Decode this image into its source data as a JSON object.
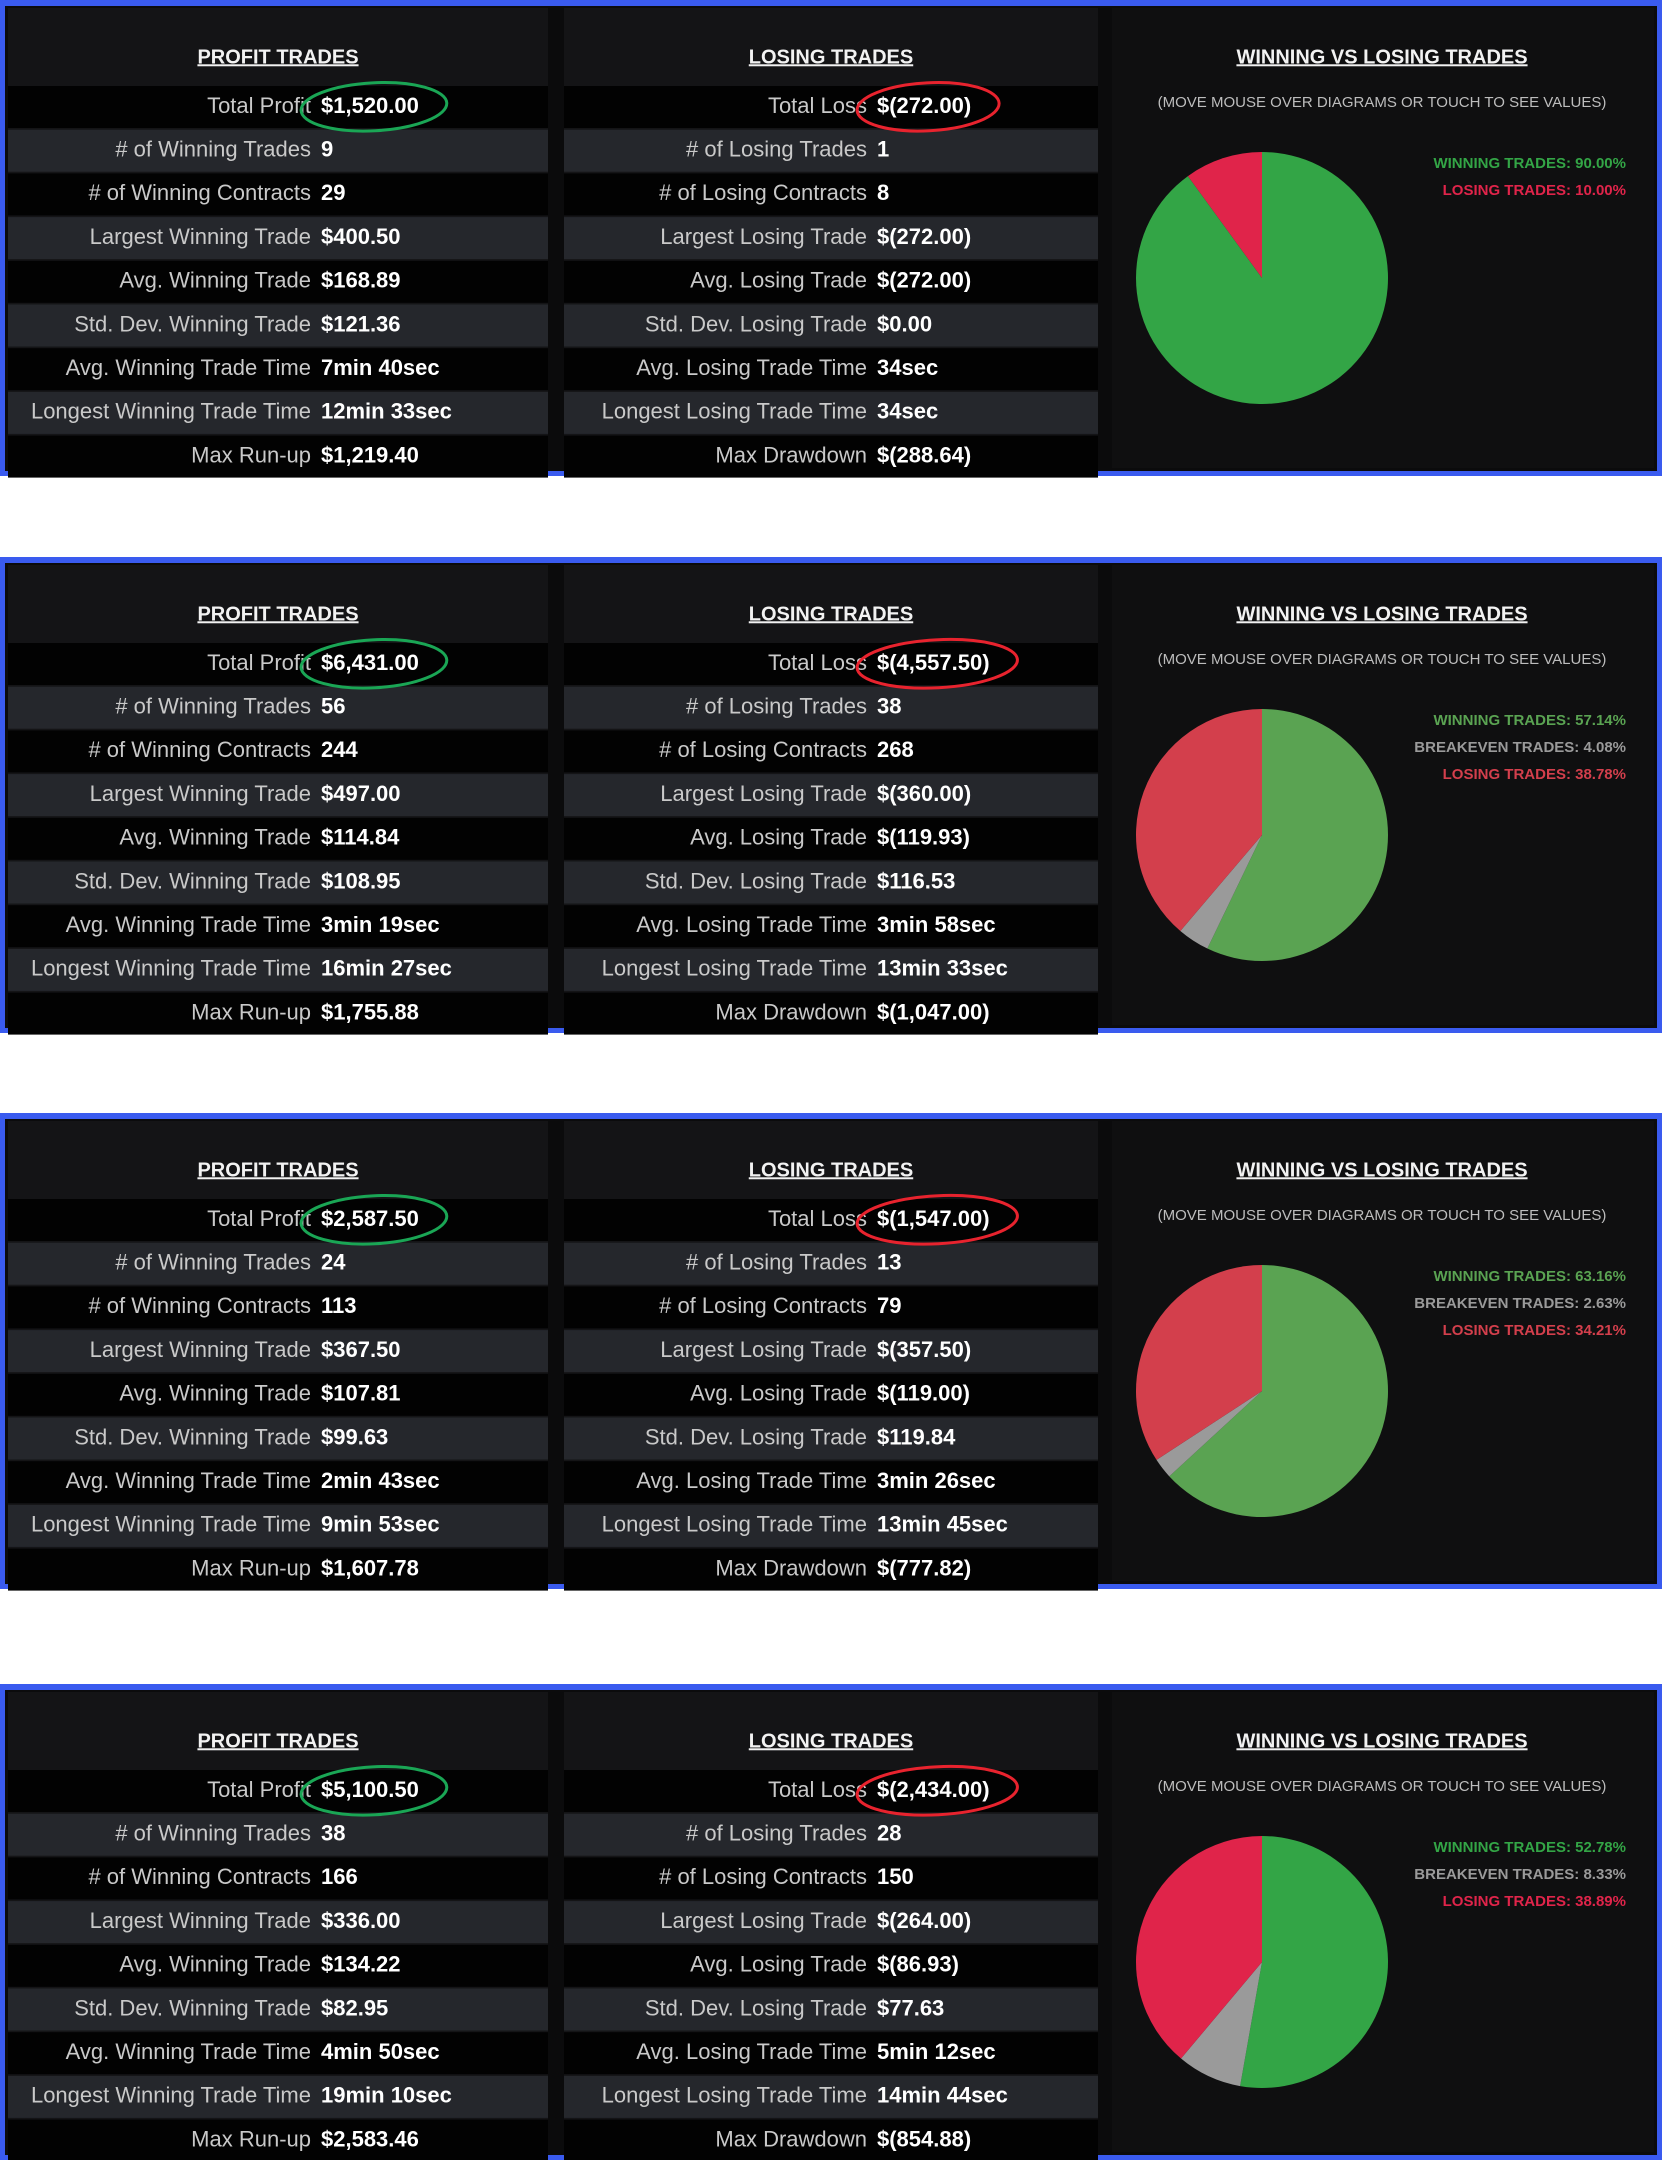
{
  "panels": [
    {
      "profit": {
        "title": "PROFIT TRADES",
        "rows": [
          {
            "label": "Total Profit",
            "value": "$1,520.00"
          },
          {
            "label": "# of Winning Trades",
            "value": "9"
          },
          {
            "label": "# of Winning Contracts",
            "value": "29"
          },
          {
            "label": "Largest Winning Trade",
            "value": "$400.50"
          },
          {
            "label": "Avg. Winning Trade",
            "value": "$168.89"
          },
          {
            "label": "Std. Dev. Winning Trade",
            "value": "$121.36"
          },
          {
            "label": "Avg. Winning Trade Time",
            "value": "7min 40sec"
          },
          {
            "label": "Longest Winning Trade Time",
            "value": "12min 33sec"
          },
          {
            "label": "Max Run-up",
            "value": "$1,219.40"
          }
        ]
      },
      "loss": {
        "title": "LOSING TRADES",
        "rows": [
          {
            "label": "Total Loss",
            "value": "$(272.00)"
          },
          {
            "label": "# of Losing Trades",
            "value": "1"
          },
          {
            "label": "# of Losing Contracts",
            "value": "8"
          },
          {
            "label": "Largest Losing Trade",
            "value": "$(272.00)"
          },
          {
            "label": "Avg. Losing Trade",
            "value": "$(272.00)"
          },
          {
            "label": "Std. Dev. Losing Trade",
            "value": "$0.00"
          },
          {
            "label": "Avg. Losing Trade Time",
            "value": "34sec"
          },
          {
            "label": "Longest Losing Trade Time",
            "value": "34sec"
          },
          {
            "label": "Max Drawdown",
            "value": "$(288.64)"
          }
        ]
      },
      "pie": {
        "title": "WINNING VS LOSING TRADES",
        "subtitle": "(MOVE MOUSE OVER DIAGRAMS OR TOUCH TO SEE VALUES)",
        "slices": [
          {
            "label": "WINNING TRADES: 90.00%",
            "value": 90,
            "color": "#33a546"
          },
          {
            "label": "LOSING TRADES: 10.00%",
            "value": 10,
            "color": "#e0244a"
          }
        ]
      }
    },
    {
      "profit": {
        "title": "PROFIT TRADES",
        "rows": [
          {
            "label": "Total Profit",
            "value": "$6,431.00"
          },
          {
            "label": "# of Winning Trades",
            "value": "56"
          },
          {
            "label": "# of Winning Contracts",
            "value": "244"
          },
          {
            "label": "Largest Winning Trade",
            "value": "$497.00"
          },
          {
            "label": "Avg. Winning Trade",
            "value": "$114.84"
          },
          {
            "label": "Std. Dev. Winning Trade",
            "value": "$108.95"
          },
          {
            "label": "Avg. Winning Trade Time",
            "value": "3min 19sec"
          },
          {
            "label": "Longest Winning Trade Time",
            "value": "16min 27sec"
          },
          {
            "label": "Max Run-up",
            "value": "$1,755.88"
          }
        ]
      },
      "loss": {
        "title": "LOSING TRADES",
        "rows": [
          {
            "label": "Total Loss",
            "value": "$(4,557.50)"
          },
          {
            "label": "# of Losing Trades",
            "value": "38"
          },
          {
            "label": "# of Losing Contracts",
            "value": "268"
          },
          {
            "label": "Largest Losing Trade",
            "value": "$(360.00)"
          },
          {
            "label": "Avg. Losing Trade",
            "value": "$(119.93)"
          },
          {
            "label": "Std. Dev. Losing Trade",
            "value": "$116.53"
          },
          {
            "label": "Avg. Losing Trade Time",
            "value": "3min 58sec"
          },
          {
            "label": "Longest Losing Trade Time",
            "value": "13min 33sec"
          },
          {
            "label": "Max Drawdown",
            "value": "$(1,047.00)"
          }
        ]
      },
      "pie": {
        "title": "WINNING VS LOSING TRADES",
        "subtitle": "(MOVE MOUSE OVER DIAGRAMS OR TOUCH TO SEE VALUES)",
        "slices": [
          {
            "label": "WINNING TRADES: 57.14%",
            "value": 57.14,
            "color": "#5aa352"
          },
          {
            "label": "BREAKEVEN TRADES: 4.08%",
            "value": 4.08,
            "color": "#9a9a9a"
          },
          {
            "label": "LOSING TRADES: 38.78%",
            "value": 38.78,
            "color": "#d33f4c"
          }
        ]
      }
    },
    {
      "profit": {
        "title": "PROFIT TRADES",
        "rows": [
          {
            "label": "Total Profit",
            "value": "$2,587.50"
          },
          {
            "label": "# of Winning Trades",
            "value": "24"
          },
          {
            "label": "# of Winning Contracts",
            "value": "113"
          },
          {
            "label": "Largest Winning Trade",
            "value": "$367.50"
          },
          {
            "label": "Avg. Winning Trade",
            "value": "$107.81"
          },
          {
            "label": "Std. Dev. Winning Trade",
            "value": "$99.63"
          },
          {
            "label": "Avg. Winning Trade Time",
            "value": "2min 43sec"
          },
          {
            "label": "Longest Winning Trade Time",
            "value": "9min 53sec"
          },
          {
            "label": "Max Run-up",
            "value": "$1,607.78"
          }
        ]
      },
      "loss": {
        "title": "LOSING TRADES",
        "rows": [
          {
            "label": "Total Loss",
            "value": "$(1,547.00)"
          },
          {
            "label": "# of Losing Trades",
            "value": "13"
          },
          {
            "label": "# of Losing Contracts",
            "value": "79"
          },
          {
            "label": "Largest Losing Trade",
            "value": "$(357.50)"
          },
          {
            "label": "Avg. Losing Trade",
            "value": "$(119.00)"
          },
          {
            "label": "Std. Dev. Losing Trade",
            "value": "$119.84"
          },
          {
            "label": "Avg. Losing Trade Time",
            "value": "3min 26sec"
          },
          {
            "label": "Longest Losing Trade Time",
            "value": "13min 45sec"
          },
          {
            "label": "Max Drawdown",
            "value": "$(777.82)"
          }
        ]
      },
      "pie": {
        "title": "WINNING VS LOSING TRADES",
        "subtitle": "(MOVE MOUSE OVER DIAGRAMS OR TOUCH TO SEE VALUES)",
        "slices": [
          {
            "label": "WINNING TRADES: 63.16%",
            "value": 63.16,
            "color": "#5aa352"
          },
          {
            "label": "BREAKEVEN TRADES: 2.63%",
            "value": 2.63,
            "color": "#9a9a9a"
          },
          {
            "label": "LOSING TRADES: 34.21%",
            "value": 34.21,
            "color": "#d33f4c"
          }
        ]
      }
    },
    {
      "profit": {
        "title": "PROFIT TRADES",
        "rows": [
          {
            "label": "Total Profit",
            "value": "$5,100.50"
          },
          {
            "label": "# of Winning Trades",
            "value": "38"
          },
          {
            "label": "# of Winning Contracts",
            "value": "166"
          },
          {
            "label": "Largest Winning Trade",
            "value": "$336.00"
          },
          {
            "label": "Avg. Winning Trade",
            "value": "$134.22"
          },
          {
            "label": "Std. Dev. Winning Trade",
            "value": "$82.95"
          },
          {
            "label": "Avg. Winning Trade Time",
            "value": "4min 50sec"
          },
          {
            "label": "Longest Winning Trade Time",
            "value": "19min 10sec"
          },
          {
            "label": "Max Run-up",
            "value": "$2,583.46"
          }
        ]
      },
      "loss": {
        "title": "LOSING TRADES",
        "rows": [
          {
            "label": "Total Loss",
            "value": "$(2,434.00)"
          },
          {
            "label": "# of Losing Trades",
            "value": "28"
          },
          {
            "label": "# of Losing Contracts",
            "value": "150"
          },
          {
            "label": "Largest Losing Trade",
            "value": "$(264.00)"
          },
          {
            "label": "Avg. Losing Trade",
            "value": "$(86.93)"
          },
          {
            "label": "Std. Dev. Losing Trade",
            "value": "$77.63"
          },
          {
            "label": "Avg. Losing Trade Time",
            "value": "5min 12sec"
          },
          {
            "label": "Longest Losing Trade Time",
            "value": "14min 44sec"
          },
          {
            "label": "Max Drawdown",
            "value": "$(854.88)"
          }
        ]
      },
      "pie": {
        "title": "WINNING VS LOSING TRADES",
        "subtitle": "(MOVE MOUSE OVER DIAGRAMS OR TOUCH TO SEE VALUES)",
        "slices": [
          {
            "label": "WINNING TRADES: 52.78%",
            "value": 52.78,
            "color": "#33a546"
          },
          {
            "label": "BREAKEVEN TRADES: 8.33%",
            "value": 8.33,
            "color": "#9a9a9a"
          },
          {
            "label": "LOSING TRADES: 38.89%",
            "value": 38.89,
            "color": "#e0244a"
          }
        ]
      }
    }
  ]
}
